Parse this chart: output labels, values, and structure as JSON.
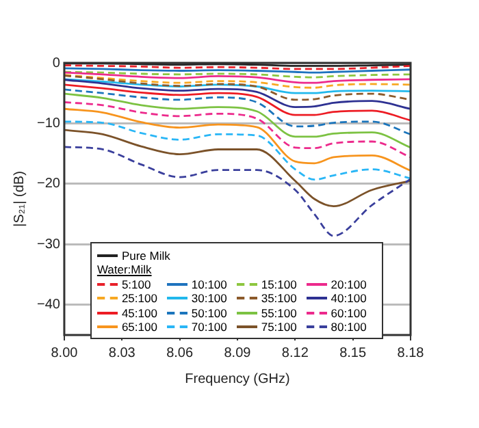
{
  "chart_data": {
    "type": "line",
    "xlabel": "Frequency (GHz)",
    "ylabel": "|S₂₁| (dB)",
    "legend_title": "Water:Milk",
    "legend": "bottom",
    "grid": "y",
    "x": [
      8.0,
      8.02,
      8.04,
      8.06,
      8.08,
      8.1,
      8.12,
      8.13,
      8.14,
      8.16,
      8.18
    ],
    "xlim": [
      8.0,
      8.18
    ],
    "xticks": [
      {
        "value": 8.0,
        "label": "8.00"
      },
      {
        "value": 8.03,
        "label": "8.03"
      },
      {
        "value": 8.06,
        "label": "8.06"
      },
      {
        "value": 8.09,
        "label": "8.09"
      },
      {
        "value": 8.12,
        "label": "8.12"
      },
      {
        "value": 8.15,
        "label": "8.15"
      },
      {
        "value": 8.18,
        "label": "8.18"
      }
    ],
    "ylim": [
      -45,
      0
    ],
    "yticks": [
      -40,
      -30,
      -20,
      -10,
      0
    ],
    "series": [
      {
        "name": "Pure Milk",
        "color": "#222222",
        "line_style": "solid",
        "values": [
          -0.1,
          -0.1,
          -0.2,
          -0.3,
          -0.2,
          -0.3,
          -0.5,
          -0.5,
          -0.5,
          -0.4,
          -0.3
        ]
      },
      {
        "name": "5:100",
        "color": "#e8202a",
        "line_style": "dashed",
        "values": [
          -0.4,
          -0.5,
          -0.6,
          -0.8,
          -0.7,
          -0.8,
          -1.0,
          -1.0,
          -1.0,
          -0.8,
          -0.5
        ]
      },
      {
        "name": "10:100",
        "color": "#1e73be",
        "line_style": "solid",
        "values": [
          -0.9,
          -1.0,
          -1.2,
          -1.3,
          -1.2,
          -1.3,
          -1.5,
          -1.6,
          -1.5,
          -1.3,
          -1.1
        ]
      },
      {
        "name": "15:100",
        "color": "#8dc63f",
        "line_style": "dashed",
        "values": [
          -1.5,
          -1.6,
          -1.8,
          -1.9,
          -1.8,
          -1.9,
          -2.3,
          -2.4,
          -2.2,
          -2.0,
          -1.9
        ]
      },
      {
        "name": "20:100",
        "color": "#ec2a8c",
        "line_style": "solid",
        "values": [
          -1.6,
          -1.9,
          -2.3,
          -2.5,
          -2.2,
          -2.4,
          -3.2,
          -3.3,
          -3.0,
          -2.8,
          -2.7
        ]
      },
      {
        "name": "25:100",
        "color": "#f7a823",
        "line_style": "dashed",
        "values": [
          -2.0,
          -2.5,
          -3.0,
          -3.3,
          -3.0,
          -3.2,
          -4.0,
          -4.1,
          -3.7,
          -3.5,
          -3.6
        ]
      },
      {
        "name": "30:100",
        "color": "#21b8ec",
        "line_style": "solid",
        "values": [
          -2.7,
          -3.1,
          -3.6,
          -3.9,
          -3.6,
          -3.9,
          -5.0,
          -5.0,
          -4.7,
          -4.6,
          -4.7
        ]
      },
      {
        "name": "35:100",
        "color": "#8c5a2b",
        "line_style": "dashed",
        "values": [
          -2.1,
          -2.7,
          -3.4,
          -3.8,
          -3.5,
          -3.9,
          -6.1,
          -6.0,
          -5.4,
          -5.1,
          -6.1
        ]
      },
      {
        "name": "40:100",
        "color": "#2e3192",
        "line_style": "solid",
        "values": [
          -2.8,
          -3.4,
          -4.2,
          -4.6,
          -4.3,
          -4.8,
          -7.3,
          -7.2,
          -6.6,
          -6.3,
          -7.6
        ]
      },
      {
        "name": "45:100",
        "color": "#ed1c24",
        "line_style": "solid",
        "values": [
          -3.6,
          -4.2,
          -4.9,
          -5.3,
          -5.0,
          -5.6,
          -8.6,
          -8.6,
          -8.1,
          -7.9,
          -9.5
        ]
      },
      {
        "name": "50:100",
        "color": "#1b75bc",
        "line_style": "dashed",
        "values": [
          -4.4,
          -5.0,
          -5.7,
          -6.1,
          -5.7,
          -6.5,
          -10.5,
          -10.4,
          -9.9,
          -9.7,
          -11.8
        ]
      },
      {
        "name": "55:100",
        "color": "#7cc242",
        "line_style": "solid",
        "values": [
          -5.1,
          -5.8,
          -7.0,
          -7.6,
          -7.3,
          -8.0,
          -12.2,
          -12.2,
          -11.7,
          -11.5,
          -14.0
        ]
      },
      {
        "name": "60:100",
        "color": "#ec2a8c",
        "line_style": "dashed",
        "values": [
          -6.5,
          -7.0,
          -8.2,
          -8.8,
          -8.4,
          -9.2,
          -14.0,
          -14.1,
          -13.3,
          -13.0,
          -15.6
        ]
      },
      {
        "name": "65:100",
        "color": "#f7941d",
        "line_style": "solid",
        "values": [
          -7.6,
          -8.2,
          -9.8,
          -10.7,
          -10.2,
          -10.6,
          -16.3,
          -16.6,
          -15.6,
          -15.3,
          -17.8
        ]
      },
      {
        "name": "70:100",
        "color": "#29b6f6",
        "line_style": "dashed",
        "values": [
          -9.7,
          -9.9,
          -11.6,
          -12.7,
          -11.8,
          -12.0,
          -17.6,
          -19.3,
          -18.6,
          -17.6,
          -19.1
        ]
      },
      {
        "name": "75:100",
        "color": "#7b5229",
        "line_style": "solid",
        "values": [
          -11.1,
          -11.8,
          -13.8,
          -15.1,
          -14.3,
          -14.3,
          -19.5,
          -22.5,
          -23.7,
          -21.0,
          -19.5
        ]
      },
      {
        "name": "80:100",
        "color": "#3a3f9c",
        "line_style": "dashed",
        "values": [
          -13.9,
          -14.3,
          -16.8,
          -18.9,
          -17.7,
          -17.7,
          -21.0,
          -25.0,
          -28.6,
          -23.5,
          -19.2
        ]
      }
    ]
  }
}
